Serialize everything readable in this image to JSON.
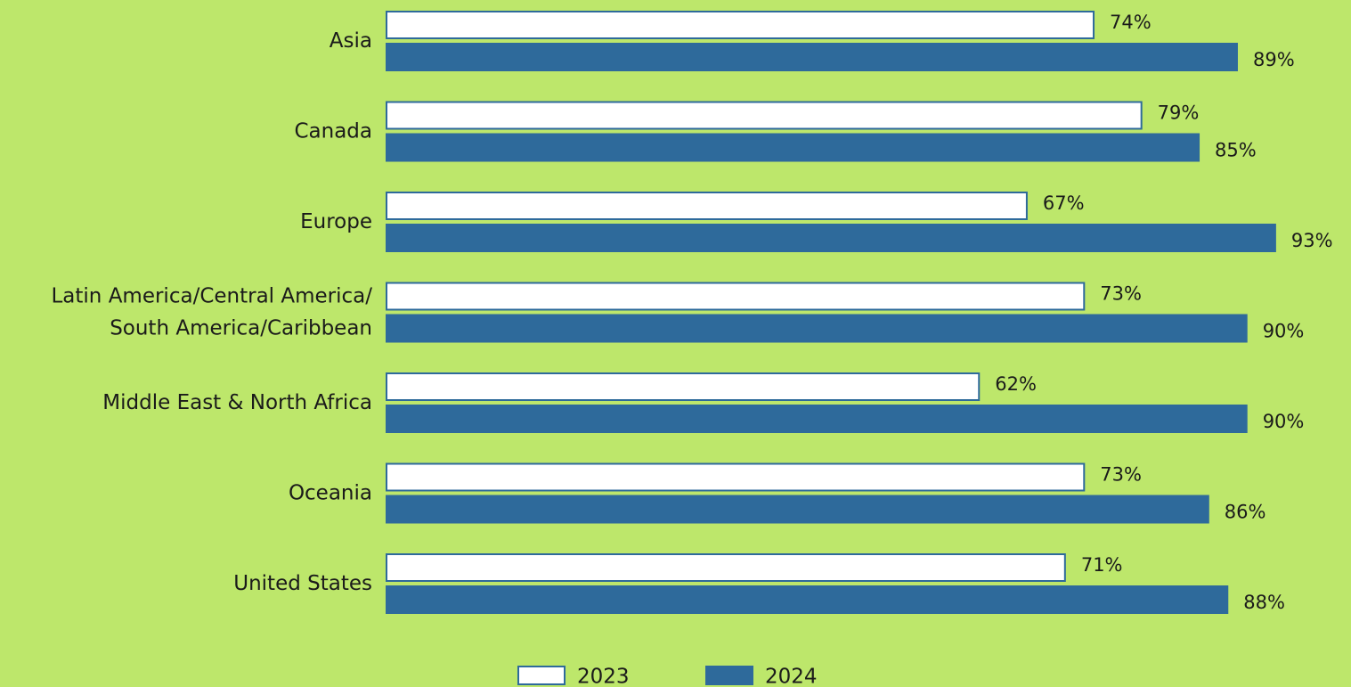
{
  "chart_data": {
    "type": "bar",
    "orientation": "horizontal",
    "categories": [
      "Asia",
      "Canada",
      "Europe",
      "Latin America/Central America/\nSouth America/Caribbean",
      "Middle East & North Africa",
      "Oceania",
      "United States"
    ],
    "series": [
      {
        "name": "2023",
        "color": "#ffffff",
        "values": [
          74,
          79,
          67,
          73,
          62,
          73,
          71
        ],
        "value_labels": [
          "74%",
          "79%",
          "67%",
          "73%",
          "62%",
          "73%",
          "71%"
        ]
      },
      {
        "name": "2024",
        "color": "#2e6a9b",
        "values": [
          89,
          85,
          93,
          90,
          90,
          86,
          88
        ],
        "value_labels": [
          "89%",
          "85%",
          "93%",
          "90%",
          "90%",
          "86%",
          "88%"
        ]
      }
    ],
    "xlim": [
      0,
      100
    ],
    "legend": "bottom"
  }
}
